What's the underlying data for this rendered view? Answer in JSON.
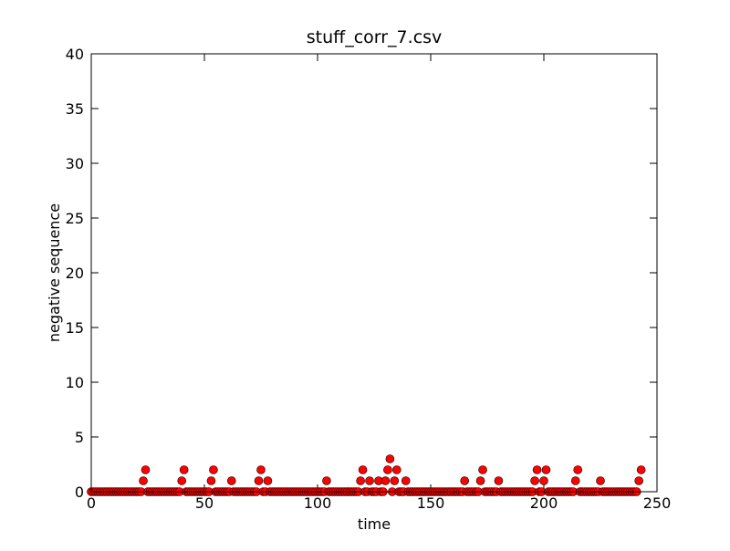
{
  "chart_data": {
    "type": "scatter",
    "title": "stuff_corr_7.csv",
    "x_label": "time",
    "y_label": "negative sequence",
    "color": "#ff0000",
    "x": [
      0,
      1,
      2,
      3,
      4,
      5,
      6,
      7,
      8,
      9,
      10,
      11,
      12,
      13,
      14,
      15,
      16,
      17,
      18,
      19,
      20,
      21,
      22,
      23,
      24,
      25,
      26,
      27,
      28,
      29,
      30,
      31,
      32,
      33,
      34,
      35,
      36,
      37,
      38,
      39,
      40,
      41,
      42,
      43,
      44,
      45,
      46,
      47,
      48,
      49,
      50,
      51,
      52,
      53,
      54,
      55,
      56,
      57,
      58,
      59,
      60,
      61,
      62,
      63,
      64,
      65,
      66,
      67,
      68,
      69,
      70,
      71,
      72,
      73,
      74,
      75,
      76,
      77,
      78,
      79,
      80,
      81,
      82,
      83,
      84,
      85,
      86,
      87,
      88,
      89,
      90,
      91,
      92,
      93,
      94,
      95,
      96,
      97,
      98,
      99,
      100,
      101,
      102,
      103,
      104,
      105,
      106,
      107,
      108,
      109,
      110,
      111,
      112,
      113,
      114,
      115,
      116,
      117,
      118,
      119,
      120,
      121,
      122,
      123,
      124,
      125,
      126,
      127,
      128,
      129,
      130,
      131,
      132,
      133,
      134,
      135,
      136,
      137,
      138,
      139,
      140,
      141,
      142,
      143,
      144,
      145,
      146,
      147,
      148,
      149,
      150,
      151,
      152,
      153,
      154,
      155,
      156,
      157,
      158,
      159,
      160,
      161,
      162,
      163,
      164,
      165,
      166,
      167,
      168,
      169,
      170,
      171,
      172,
      173,
      174,
      175,
      176,
      177,
      178,
      179,
      180,
      181,
      182,
      183,
      184,
      185,
      186,
      187,
      188,
      189,
      190,
      191,
      192,
      193,
      194,
      195,
      196,
      197,
      198,
      199,
      200,
      201,
      202,
      203,
      204,
      205,
      206,
      207,
      208,
      209,
      210,
      211,
      212,
      213,
      214,
      215,
      216,
      217,
      218,
      219,
      220,
      221,
      222,
      223,
      224,
      225,
      226,
      227,
      228,
      229,
      230,
      231,
      232,
      233,
      234,
      235,
      236,
      237,
      238,
      239,
      240,
      241,
      242,
      243
    ],
    "values": [
      0,
      0,
      0,
      0,
      0,
      0,
      0,
      0,
      0,
      0,
      0,
      0,
      0,
      0,
      0,
      0,
      0,
      0,
      0,
      0,
      0,
      0,
      0,
      1,
      2,
      0,
      0,
      0,
      0,
      0,
      0,
      0,
      0,
      0,
      0,
      0,
      0,
      0,
      0,
      0,
      1,
      2,
      0,
      0,
      0,
      0,
      0,
      0,
      0,
      0,
      0,
      0,
      0,
      1,
      2,
      0,
      0,
      0,
      0,
      0,
      0,
      0,
      1,
      0,
      0,
      0,
      0,
      0,
      0,
      0,
      0,
      0,
      0,
      0,
      1,
      2,
      0,
      0,
      1,
      0,
      0,
      0,
      0,
      0,
      0,
      0,
      0,
      0,
      0,
      0,
      0,
      0,
      0,
      0,
      0,
      0,
      0,
      0,
      0,
      0,
      0,
      0,
      0,
      0,
      1,
      0,
      0,
      0,
      0,
      0,
      0,
      0,
      0,
      0,
      0,
      0,
      0,
      0,
      0,
      1,
      2,
      0,
      0,
      1,
      0,
      0,
      0,
      1,
      0,
      0,
      1,
      2,
      3,
      0,
      1,
      2,
      0,
      0,
      0,
      1,
      0,
      0,
      0,
      0,
      0,
      0,
      0,
      0,
      0,
      0,
      0,
      0,
      0,
      0,
      0,
      0,
      0,
      0,
      0,
      0,
      0,
      0,
      0,
      0,
      0,
      1,
      0,
      0,
      0,
      0,
      0,
      0,
      1,
      2,
      0,
      0,
      0,
      0,
      0,
      0,
      1,
      0,
      0,
      0,
      0,
      0,
      0,
      0,
      0,
      0,
      0,
      0,
      0,
      0,
      0,
      0,
      1,
      2,
      0,
      0,
      1,
      2,
      0,
      0,
      0,
      0,
      0,
      0,
      0,
      0,
      0,
      0,
      0,
      0,
      1,
      2,
      0,
      0,
      0,
      0,
      0,
      0,
      0,
      0,
      0,
      1,
      0,
      0,
      0,
      0,
      0,
      0,
      0,
      0,
      0,
      0,
      0,
      0,
      0,
      0,
      0,
      0,
      1,
      2
    ],
    "xlim": [
      0,
      250
    ],
    "xticks": [
      0,
      50,
      100,
      150,
      200,
      250
    ],
    "ylim": [
      0,
      40
    ],
    "yticks": [
      0,
      5,
      10,
      15,
      20,
      25,
      30,
      35,
      40
    ]
  }
}
